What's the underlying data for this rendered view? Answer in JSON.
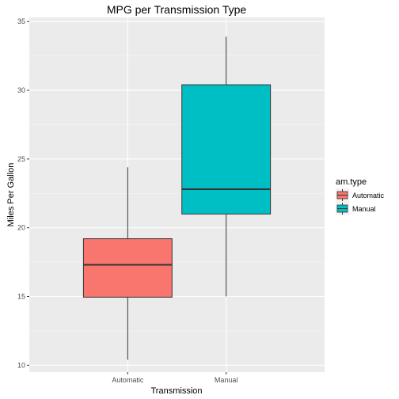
{
  "chart_data": {
    "type": "boxplot",
    "title": "MPG per Transmission Type",
    "xlabel": "Transmission",
    "ylabel": "Miles Per Gallon",
    "categories": [
      "Automatic",
      "Manual"
    ],
    "ylim": [
      9.5,
      35.3
    ],
    "yticks": [
      10,
      15,
      20,
      25,
      30,
      35
    ],
    "grid": true,
    "legend": {
      "title": "am.type",
      "position": "right",
      "entries": [
        "Automatic",
        "Manual"
      ]
    },
    "series": [
      {
        "name": "Automatic",
        "min": 10.4,
        "q1": 14.95,
        "median": 17.3,
        "q3": 19.2,
        "max": 24.4,
        "color": "#f8766d"
      },
      {
        "name": "Manual",
        "min": 15.0,
        "q1": 21.0,
        "median": 22.8,
        "q3": 30.4,
        "max": 33.9,
        "color": "#00bfc4"
      }
    ]
  }
}
